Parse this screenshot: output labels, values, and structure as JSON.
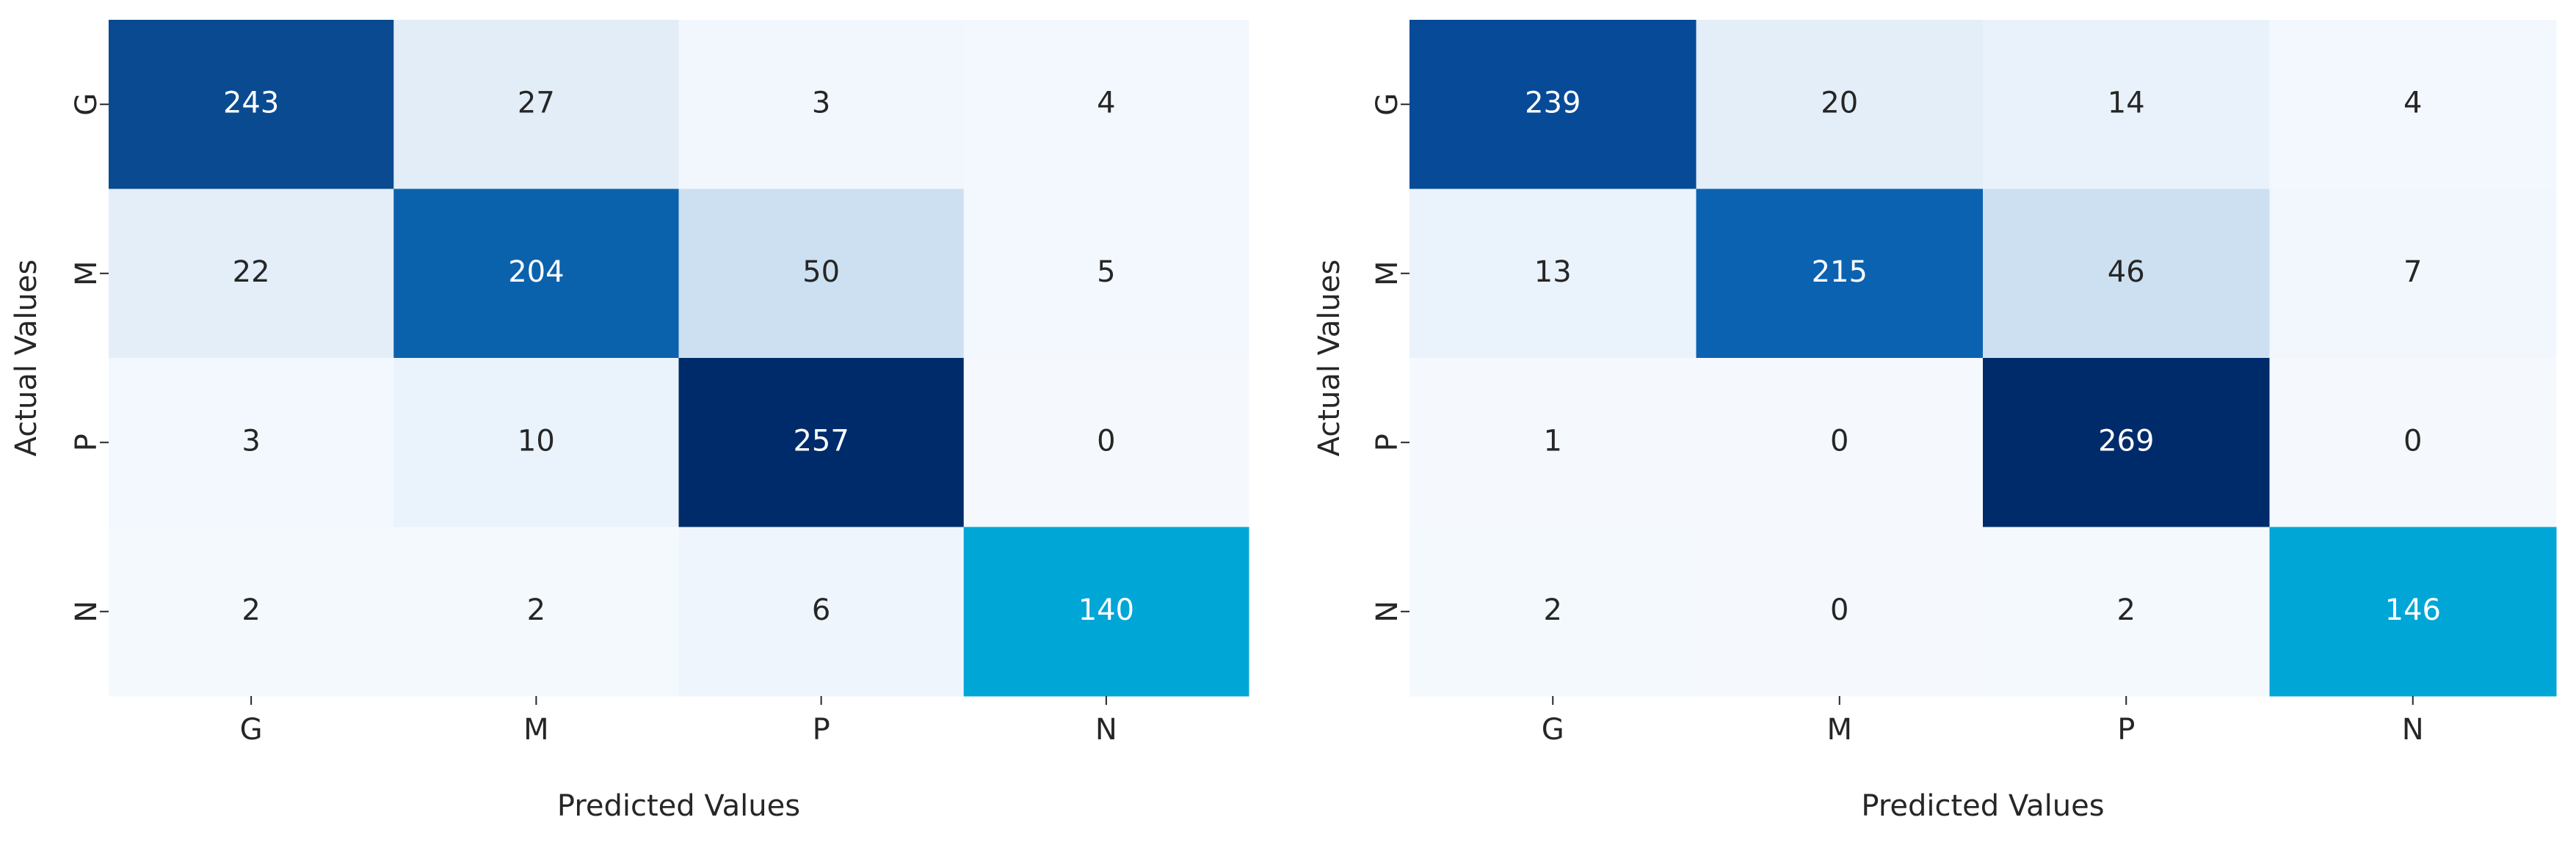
{
  "chart_data": [
    {
      "type": "heatmap",
      "xlabel": "Predicted Values",
      "ylabel": "Actual Values",
      "x": [
        "G",
        "M",
        "P",
        "N"
      ],
      "y": [
        "G",
        "M",
        "P",
        "N"
      ],
      "z": [
        [
          243,
          27,
          3,
          4
        ],
        [
          22,
          204,
          50,
          5
        ],
        [
          3,
          10,
          257,
          0
        ],
        [
          2,
          2,
          6,
          140
        ]
      ],
      "colors": [
        [
          "#0a4a90",
          "#e2edf8",
          "#f2f7fd",
          "#f3f8fe"
        ],
        [
          "#e3eef9",
          "#0b62ac",
          "#cde0f1",
          "#f3f8fe"
        ],
        [
          "#f3f8fe",
          "#eaf2fb",
          "#002b6a",
          "#f5f9fe"
        ],
        [
          "#f4f9fe",
          "#f4f9fe",
          "#eef5fc",
          "#00a6d6"
        ]
      ]
    },
    {
      "type": "heatmap",
      "xlabel": "Predicted Values",
      "ylabel": "Actual Values",
      "x": [
        "G",
        "M",
        "P",
        "N"
      ],
      "y": [
        "G",
        "M",
        "P",
        "N"
      ],
      "z": [
        [
          239,
          20,
          14,
          4
        ],
        [
          13,
          215,
          46,
          7
        ],
        [
          1,
          0,
          269,
          0
        ],
        [
          2,
          0,
          2,
          146
        ]
      ],
      "colors": [
        [
          "#074a98",
          "#e4eef9",
          "#e9f2fb",
          "#f3f8fe"
        ],
        [
          "#eaf2fb",
          "#0b62b0",
          "#cde0f1",
          "#f1f7fd"
        ],
        [
          "#f5f9fe",
          "#f5f9fe",
          "#002b6a",
          "#f5f9fe"
        ],
        [
          "#f4f9fe",
          "#f5f9fe",
          "#f4f9fe",
          "#00a6d6"
        ]
      ]
    }
  ]
}
